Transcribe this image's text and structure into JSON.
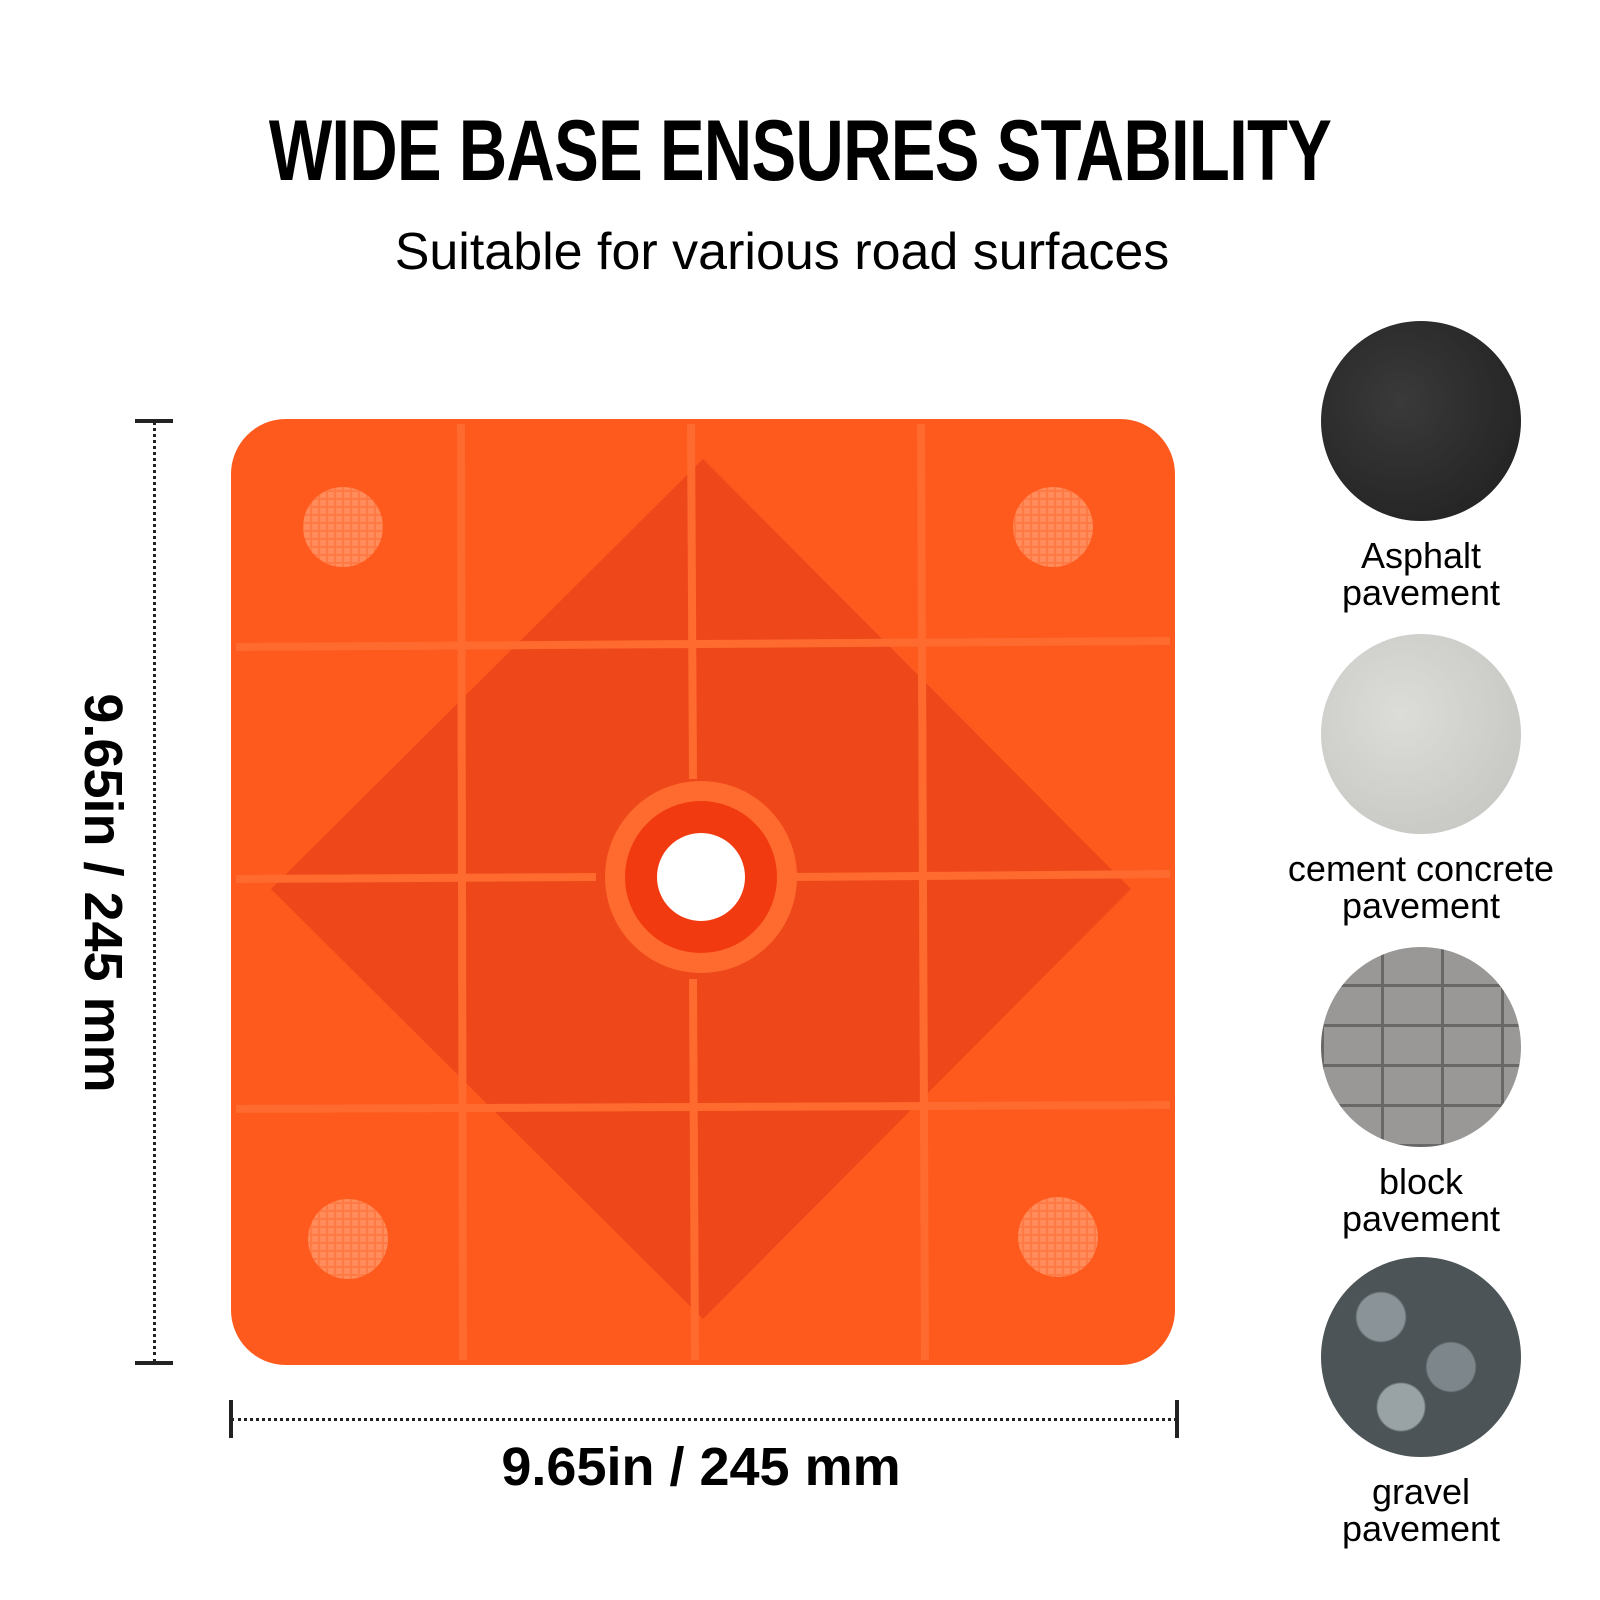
{
  "header": {
    "title": "WIDE BASE ENSURES STABILITY",
    "subtitle": "Suitable for various road surfaces"
  },
  "dimensions": {
    "height_label": "9.65in / 245 mm",
    "width_label": "9.65in / 245 mm"
  },
  "colors": {
    "base_orange": "#FF5A1E",
    "base_shadow": "#E8431A",
    "rib": "#FF6A2E"
  },
  "surfaces": [
    {
      "line1": "Asphalt",
      "line2": "pavement",
      "color": "#2a2a2a"
    },
    {
      "line1": "cement concrete",
      "line2": "pavement",
      "color": "#cfcfcb"
    },
    {
      "line1": "block",
      "line2": "pavement",
      "color": "#8a8886"
    },
    {
      "line1": "gravel",
      "line2": "pavement",
      "color": "#5b6468"
    }
  ]
}
